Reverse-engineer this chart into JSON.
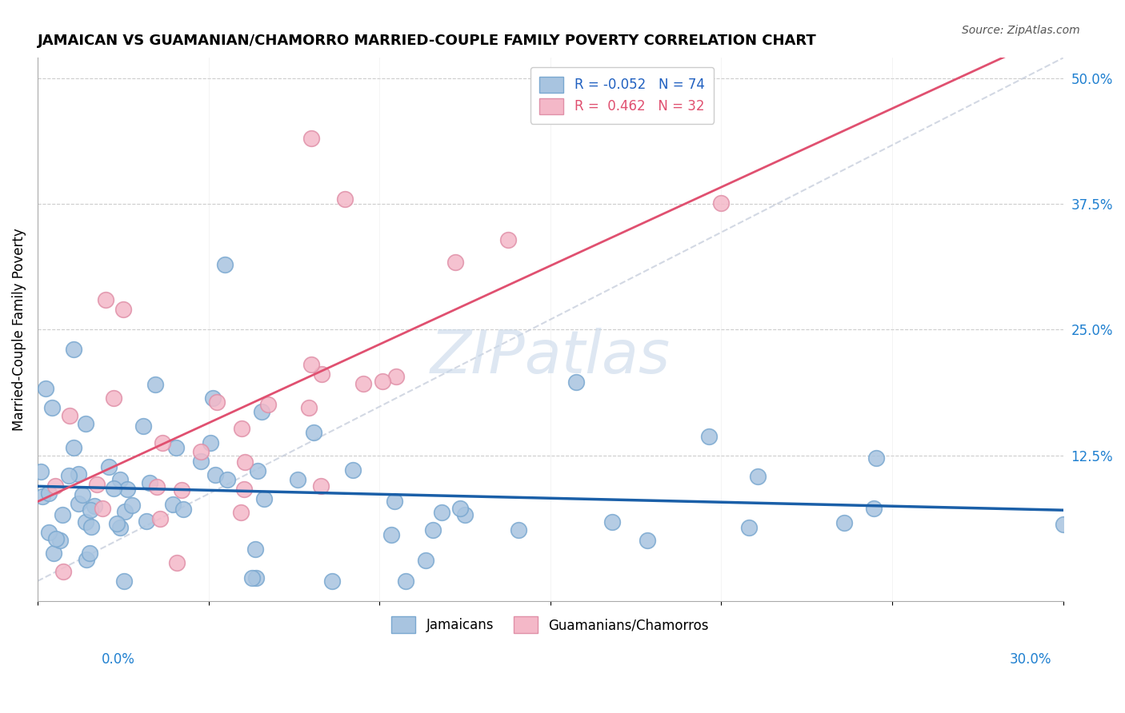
{
  "title": "JAMAICAN VS GUAMANIAN/CHAMORRO MARRIED-COUPLE FAMILY POVERTY CORRELATION CHART",
  "source": "Source: ZipAtlas.com",
  "ylabel": "Married-Couple Family Poverty",
  "right_yticks": [
    "50.0%",
    "37.5%",
    "25.0%",
    "12.5%"
  ],
  "right_ytick_vals": [
    0.5,
    0.375,
    0.25,
    0.125
  ],
  "legend_label_blue": "Jamaicans",
  "legend_label_pink": "Guamanians/Chamorros",
  "blue_color": "#a8c4e0",
  "pink_color": "#f4b8c8",
  "blue_edge_color": "#7aa8d0",
  "pink_edge_color": "#e090a8",
  "blue_line_color": "#1a5fa8",
  "pink_line_color": "#e05070",
  "dash_color": "#c0c8d8",
  "watermark": "ZIPatlas",
  "xlim": [
    0.0,
    0.3
  ],
  "ylim": [
    -0.02,
    0.52
  ],
  "blue_R": -0.052,
  "blue_N": 74,
  "pink_R": 0.462,
  "pink_N": 32,
  "legend_text_blue_color": "#2060c0",
  "legend_text_pink_color": "#e05070",
  "axis_label_color": "#2080d0",
  "grid_color": "#cccccc",
  "source_color": "#555555"
}
